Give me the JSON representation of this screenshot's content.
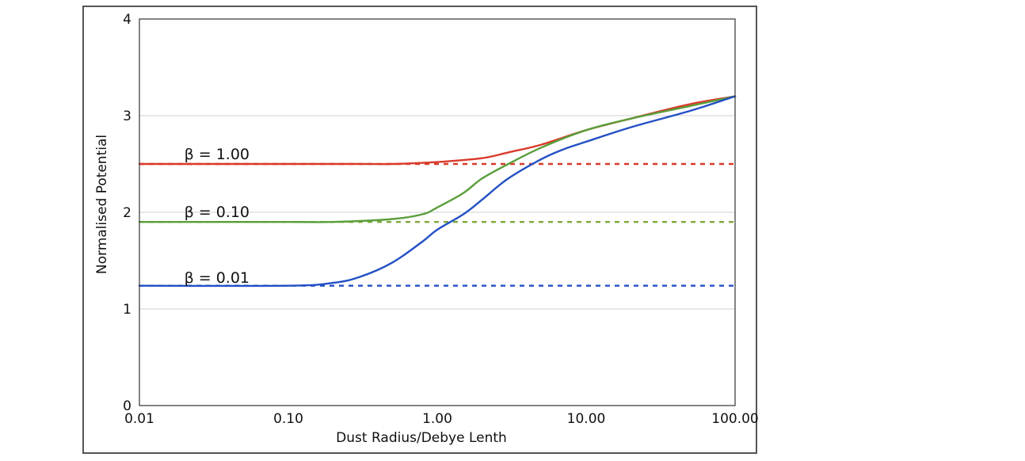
{
  "chart_data": {
    "type": "line",
    "title": "",
    "xlabel": "Dust Radius/Debye Lenth",
    "ylabel": "Normalised Potential",
    "x_scale": "log",
    "xlim": [
      0.01,
      100
    ],
    "ylim": [
      0,
      4
    ],
    "x_tick_labels": [
      "0.01",
      "0.10",
      "1.00",
      "10.00",
      "100.00"
    ],
    "x_tick_values": [
      0.01,
      0.1,
      1,
      10,
      100
    ],
    "y_tick_labels": [
      "0",
      "1",
      "2",
      "3",
      "4"
    ],
    "y_tick_values": [
      0,
      1,
      2,
      3,
      4
    ],
    "grid": "horizontal",
    "legend": "none",
    "annotations": [
      {
        "text": "β = 1.00",
        "x": 0.02,
        "y": 2.6
      },
      {
        "text": "β = 0.10",
        "x": 0.02,
        "y": 2.0
      },
      {
        "text": "β = 0.01",
        "x": 0.02,
        "y": 1.32
      }
    ],
    "series": [
      {
        "color": "#d93a2b",
        "style": "solid",
        "x": [
          0.01,
          0.1,
          0.3,
          0.5,
          1,
          2,
          3,
          5,
          10,
          20,
          50,
          100
        ],
        "y": [
          2.5,
          2.5,
          2.5,
          2.5,
          2.52,
          2.56,
          2.62,
          2.7,
          2.85,
          2.97,
          3.12,
          3.2
        ]
      },
      {
        "color": "#5a9e3a",
        "style": "solid",
        "x": [
          0.01,
          0.1,
          0.2,
          0.5,
          0.8,
          1,
          1.5,
          2,
          3,
          5,
          10,
          20,
          50,
          100
        ],
        "y": [
          1.9,
          1.9,
          1.9,
          1.93,
          1.98,
          2.05,
          2.2,
          2.35,
          2.5,
          2.67,
          2.85,
          2.97,
          3.1,
          3.2
        ]
      },
      {
        "color": "#2350c4",
        "style": "solid",
        "x": [
          0.01,
          0.1,
          0.2,
          0.3,
          0.5,
          0.8,
          1,
          1.5,
          2,
          3,
          5,
          7,
          10,
          20,
          50,
          100
        ],
        "y": [
          1.24,
          1.24,
          1.27,
          1.33,
          1.48,
          1.7,
          1.82,
          1.98,
          2.13,
          2.35,
          2.55,
          2.65,
          2.73,
          2.88,
          3.05,
          3.2
        ]
      },
      {
        "color": "#d93a2b",
        "style": "dashed",
        "x": [
          0.01,
          100
        ],
        "y": [
          2.5,
          2.5
        ]
      },
      {
        "color": "#7fa63a",
        "style": "dashed",
        "x": [
          0.01,
          100
        ],
        "y": [
          1.9,
          1.9
        ]
      },
      {
        "color": "#2350c4",
        "style": "dashed",
        "x": [
          0.01,
          100
        ],
        "y": [
          1.24,
          1.24
        ]
      }
    ]
  }
}
